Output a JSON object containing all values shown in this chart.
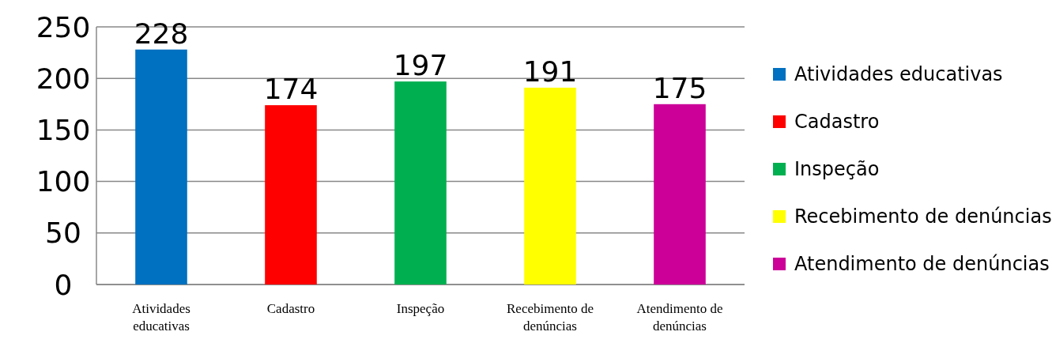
{
  "chart_data": {
    "type": "bar",
    "categories": [
      "Atividades educativas",
      "Cadastro",
      "Inspeção",
      "Recebimento de denúncias",
      "Atendimento de denúncias"
    ],
    "series": [
      {
        "name": "Atividades educativas",
        "color": "#0070c0",
        "values": [
          228,
          null,
          null,
          null,
          null
        ]
      },
      {
        "name": "Cadastro",
        "color": "#ff0000",
        "values": [
          null,
          174,
          null,
          null,
          null
        ]
      },
      {
        "name": "Inspeção",
        "color": "#00b050",
        "values": [
          null,
          null,
          197,
          null,
          null
        ]
      },
      {
        "name": "Recebimento de denúncias",
        "color": "#ffff00",
        "values": [
          null,
          null,
          null,
          191,
          null
        ]
      },
      {
        "name": "Atendimento de denúncias",
        "color": "#cc0099",
        "values": [
          null,
          null,
          null,
          null,
          175
        ]
      }
    ],
    "ylim": [
      0,
      250
    ],
    "yticks": [
      0,
      50,
      100,
      150,
      200,
      250
    ],
    "grid": "y",
    "legend": "right",
    "data_labels": true
  }
}
